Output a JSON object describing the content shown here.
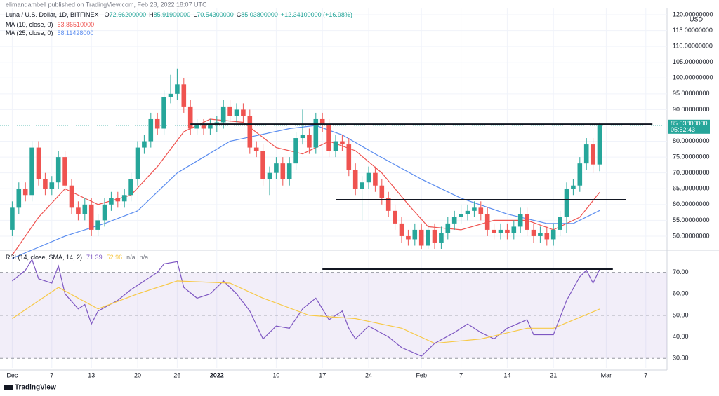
{
  "header": {
    "publisher": "elimandambell published on TradingView.com, Feb 28, 2022 18:07 UTC",
    "brand": "TradingView"
  },
  "chart_data": [
    {
      "type": "candlestick",
      "title": "Luna / U.S. Dollar, 1D, BITFINEX",
      "quote": [
        {
          "k": "O",
          "v": "72.66200000"
        },
        {
          "k": "H",
          "v": "85.91900000"
        },
        {
          "k": "L",
          "v": "70.54300000"
        },
        {
          "k": "C",
          "v": "85.03800000"
        }
      ],
      "change": "+12.34100000 (+16.98%)",
      "unit_label": "USD",
      "last_price_label": "85.03800000",
      "countdown": "05:52:43",
      "up_color": "#26a69a",
      "down_color": "#ef5350",
      "xlim": [
        "2021-11-30",
        "2022-03-10"
      ],
      "xticks": [
        {
          "value": "2021-12-01",
          "label": "Dec"
        },
        {
          "value": "2021-12-07",
          "label": "7"
        },
        {
          "value": "2021-12-13",
          "label": "13"
        },
        {
          "value": "2021-12-20",
          "label": "20"
        },
        {
          "value": "2021-12-26",
          "label": "26"
        },
        {
          "value": "2022-01-01",
          "label": "2022"
        },
        {
          "value": "2022-01-10",
          "label": "10"
        },
        {
          "value": "2022-01-17",
          "label": "17"
        },
        {
          "value": "2022-01-24",
          "label": "24"
        },
        {
          "value": "2022-02-01",
          "label": "Feb"
        },
        {
          "value": "2022-02-07",
          "label": "7"
        },
        {
          "value": "2022-02-14",
          "label": "14"
        },
        {
          "value": "2022-02-21",
          "label": "21"
        },
        {
          "value": "2022-03-01",
          "label": "Mar"
        },
        {
          "value": "2022-03-07",
          "label": "7"
        }
      ],
      "ylim": [
        46,
        122
      ],
      "yticks": [
        {
          "value": 50,
          "label": "50.00000000"
        },
        {
          "value": 55,
          "label": "55.00000000"
        },
        {
          "value": 60,
          "label": "60.00000000"
        },
        {
          "value": 65,
          "label": "65.00000000"
        },
        {
          "value": 70,
          "label": "70.00000000"
        },
        {
          "value": 75,
          "label": "75.00000000"
        },
        {
          "value": 80,
          "label": "80.00000000"
        },
        {
          "value": 90,
          "label": "90.00000000"
        },
        {
          "value": 95,
          "label": "95.00000000"
        },
        {
          "value": 100,
          "label": "100.00000000"
        },
        {
          "value": 105,
          "label": "105.00000000"
        },
        {
          "value": 110,
          "label": "110.00000000"
        },
        {
          "value": 115,
          "label": "115.00000000"
        },
        {
          "value": 120,
          "label": "120.00000000"
        }
      ],
      "grid": true,
      "x": [
        "2021-12-01",
        "2021-12-02",
        "2021-12-03",
        "2021-12-04",
        "2021-12-05",
        "2021-12-06",
        "2021-12-07",
        "2021-12-08",
        "2021-12-09",
        "2021-12-10",
        "2021-12-11",
        "2021-12-12",
        "2021-12-13",
        "2021-12-14",
        "2021-12-15",
        "2021-12-16",
        "2021-12-17",
        "2021-12-18",
        "2021-12-19",
        "2021-12-20",
        "2021-12-21",
        "2021-12-22",
        "2021-12-23",
        "2021-12-24",
        "2021-12-25",
        "2021-12-26",
        "2021-12-27",
        "2021-12-28",
        "2021-12-29",
        "2021-12-30",
        "2021-12-31",
        "2022-01-01",
        "2022-01-02",
        "2022-01-03",
        "2022-01-04",
        "2022-01-05",
        "2022-01-06",
        "2022-01-07",
        "2022-01-08",
        "2022-01-09",
        "2022-01-10",
        "2022-01-11",
        "2022-01-12",
        "2022-01-13",
        "2022-01-14",
        "2022-01-15",
        "2022-01-16",
        "2022-01-17",
        "2022-01-18",
        "2022-01-19",
        "2022-01-20",
        "2022-01-21",
        "2022-01-22",
        "2022-01-23",
        "2022-01-24",
        "2022-01-25",
        "2022-01-26",
        "2022-01-27",
        "2022-01-28",
        "2022-01-29",
        "2022-01-30",
        "2022-01-31",
        "2022-02-01",
        "2022-02-02",
        "2022-02-03",
        "2022-02-04",
        "2022-02-05",
        "2022-02-06",
        "2022-02-07",
        "2022-02-08",
        "2022-02-09",
        "2022-02-10",
        "2022-02-11",
        "2022-02-12",
        "2022-02-13",
        "2022-02-14",
        "2022-02-15",
        "2022-02-16",
        "2022-02-17",
        "2022-02-18",
        "2022-02-19",
        "2022-02-20",
        "2022-02-21",
        "2022-02-22",
        "2022-02-23",
        "2022-02-24",
        "2022-02-25",
        "2022-02-26",
        "2022-02-27",
        "2022-02-28"
      ],
      "open": [
        52,
        59,
        65,
        63,
        78,
        68,
        65,
        67,
        75,
        66,
        59,
        57,
        60,
        52,
        55,
        60,
        62,
        61,
        63,
        68,
        78,
        80,
        87,
        84,
        94,
        95,
        98,
        91,
        84,
        85,
        84,
        85,
        86,
        91,
        88,
        90,
        88,
        78,
        77,
        68,
        70,
        73,
        68,
        73,
        81,
        82,
        78,
        87,
        85,
        77,
        80,
        79,
        71,
        65,
        67,
        70,
        66,
        62,
        58,
        54,
        50,
        49,
        52,
        47,
        52,
        48,
        51,
        54,
        56,
        57,
        58,
        59,
        57,
        52,
        51,
        52,
        51,
        53,
        57,
        52,
        50,
        51,
        49,
        52,
        56,
        65,
        66,
        73,
        79,
        72.662
      ],
      "high": [
        61,
        67,
        67,
        80,
        80,
        70,
        69,
        77,
        77,
        68,
        61,
        62,
        62,
        57,
        62,
        64,
        64,
        65,
        70,
        80,
        82,
        89,
        89,
        96,
        101,
        103,
        100,
        93,
        87,
        87,
        87,
        88,
        93,
        93,
        92,
        92,
        90,
        80,
        79,
        72,
        75,
        75,
        75,
        83,
        90,
        84,
        89,
        89,
        87,
        82,
        82,
        81,
        73,
        69,
        72,
        72,
        68,
        64,
        60,
        56,
        52,
        54,
        54,
        54,
        54,
        53,
        56,
        58,
        60,
        60,
        61,
        61,
        59,
        54,
        54,
        54,
        55,
        59,
        59,
        54,
        53,
        53,
        54,
        58,
        67,
        68,
        75,
        81,
        81,
        85.919
      ],
      "low": [
        50,
        57,
        61,
        61,
        66,
        63,
        63,
        65,
        64,
        57,
        55,
        55,
        50,
        50,
        53,
        58,
        59,
        59,
        61,
        66,
        76,
        78,
        82,
        82,
        92,
        93,
        89,
        82,
        82,
        82,
        82,
        83,
        84,
        86,
        86,
        86,
        76,
        75,
        66,
        63,
        68,
        66,
        66,
        71,
        79,
        76,
        76,
        83,
        75,
        75,
        77,
        69,
        63,
        55,
        65,
        64,
        60,
        56,
        52,
        48,
        47,
        47,
        46,
        46,
        46,
        46,
        49,
        52,
        54,
        55,
        56,
        55,
        50,
        49,
        49,
        49,
        49,
        51,
        50,
        48,
        48,
        47,
        47,
        50,
        51,
        63,
        64,
        71,
        70,
        70.543
      ],
      "close": [
        59,
        65,
        63,
        78,
        68,
        65,
        67,
        75,
        66,
        59,
        57,
        60,
        52,
        55,
        60,
        62,
        61,
        63,
        68,
        78,
        80,
        87,
        84,
        94,
        95,
        98,
        91,
        84,
        85,
        84,
        85,
        86,
        91,
        88,
        90,
        88,
        78,
        77,
        68,
        70,
        73,
        68,
        73,
        81,
        82,
        78,
        87,
        85,
        77,
        80,
        79,
        71,
        65,
        67,
        70,
        66,
        62,
        58,
        54,
        50,
        49,
        52,
        47,
        52,
        48,
        51,
        54,
        56,
        57,
        58,
        59,
        57,
        52,
        51,
        52,
        51,
        53,
        57,
        52,
        50,
        51,
        49,
        52,
        56,
        65,
        66,
        73,
        79,
        72.662,
        85.038
      ],
      "series": [
        {
          "name": "MA (10, close, 0)",
          "value_label": "63.86510000",
          "color": "#ef5350",
          "x": [
            "2021-12-01",
            "2021-12-05",
            "2021-12-09",
            "2021-12-14",
            "2021-12-19",
            "2021-12-23",
            "2021-12-27",
            "2021-12-31",
            "2022-01-05",
            "2022-01-10",
            "2022-01-14",
            "2022-01-18",
            "2022-01-22",
            "2022-01-26",
            "2022-01-30",
            "2022-02-02",
            "2022-02-07",
            "2022-02-12",
            "2022-02-17",
            "2022-02-21",
            "2022-02-25",
            "2022-02-28"
          ],
          "values": [
            44,
            56,
            65,
            60,
            63,
            72,
            83,
            87,
            86,
            78,
            76,
            80,
            77,
            70,
            60,
            53,
            52,
            55,
            55,
            52,
            56,
            63.8651
          ]
        },
        {
          "name": "MA (25, close, 0)",
          "value_label": "58.11428000",
          "color": "#5b8def",
          "x": [
            "2021-12-01",
            "2021-12-09",
            "2021-12-15",
            "2021-12-20",
            "2021-12-26",
            "2022-01-03",
            "2022-01-12",
            "2022-01-16",
            "2022-01-20",
            "2022-01-25",
            "2022-02-01",
            "2022-02-07",
            "2022-02-14",
            "2022-02-20",
            "2022-02-24",
            "2022-02-28"
          ],
          "values": [
            43,
            50,
            54,
            58,
            70,
            80,
            84,
            85,
            82,
            76,
            68,
            62,
            57,
            54,
            54,
            58.11428
          ]
        }
      ],
      "trendlines": [
        {
          "x": [
            "2021-12-28",
            "2022-03-08"
          ],
          "y": 85.4
        },
        {
          "x": [
            "2022-01-19",
            "2022-03-04"
          ],
          "y": 61.5
        }
      ]
    },
    {
      "type": "line",
      "title": "RSI (14, close, SMA, 14, 2)",
      "extra_labels": [
        "n/a",
        "n/a"
      ],
      "xlim": [
        "2021-11-30",
        "2022-03-10"
      ],
      "ylim": [
        25.5,
        80
      ],
      "yticks": [
        {
          "value": 30,
          "label": "30.00"
        },
        {
          "value": 40,
          "label": "40.00"
        },
        {
          "value": 50,
          "label": "50.00"
        },
        {
          "value": 60,
          "label": "60.00"
        },
        {
          "value": 70,
          "label": "70.00"
        }
      ],
      "levels": [
        30,
        50,
        70
      ],
      "band_color": "#7e57c2",
      "series": [
        {
          "name": "RSI",
          "value_label": "71.39",
          "color": "#7e57c2",
          "x": [
            "2021-12-01",
            "2021-12-03",
            "2021-12-04",
            "2021-12-05",
            "2021-12-07",
            "2021-12-08",
            "2021-12-09",
            "2021-12-11",
            "2021-12-12",
            "2021-12-13",
            "2021-12-14",
            "2021-12-17",
            "2021-12-19",
            "2021-12-21",
            "2021-12-23",
            "2021-12-24",
            "2021-12-26",
            "2021-12-27",
            "2021-12-29",
            "2021-12-31",
            "2022-01-02",
            "2022-01-04",
            "2022-01-06",
            "2022-01-08",
            "2022-01-10",
            "2022-01-12",
            "2022-01-14",
            "2022-01-16",
            "2022-01-18",
            "2022-01-20",
            "2022-01-21",
            "2022-01-22",
            "2022-01-24",
            "2022-01-27",
            "2022-01-29",
            "2022-02-01",
            "2022-02-03",
            "2022-02-06",
            "2022-02-08",
            "2022-02-10",
            "2022-02-12",
            "2022-02-14",
            "2022-02-17",
            "2022-02-18",
            "2022-02-21",
            "2022-02-23",
            "2022-02-25",
            "2022-02-26",
            "2022-02-27",
            "2022-02-28"
          ],
          "values": [
            66,
            71,
            76,
            67,
            65,
            73,
            60,
            53,
            55,
            46,
            52,
            57,
            62,
            66,
            70,
            74,
            75,
            63,
            58,
            60,
            66,
            60,
            52,
            39,
            45,
            44,
            53,
            58,
            48,
            52,
            44,
            39,
            45,
            40,
            35,
            31,
            37,
            42,
            46,
            42,
            39,
            44,
            48,
            41,
            41,
            57,
            68,
            71,
            65,
            71.39
          ]
        },
        {
          "name": "SMA",
          "value_label": "52.96",
          "color": "#f7c948",
          "x": [
            "2021-12-01",
            "2021-12-08",
            "2021-12-14",
            "2021-12-20",
            "2021-12-26",
            "2022-01-03",
            "2022-01-08",
            "2022-01-15",
            "2022-01-22",
            "2022-01-29",
            "2022-02-03",
            "2022-02-10",
            "2022-02-17",
            "2022-02-21",
            "2022-02-28"
          ],
          "values": [
            48.5,
            63,
            53,
            60,
            66,
            65,
            58,
            50,
            48.5,
            44,
            37,
            39,
            44,
            44,
            52.96
          ]
        }
      ],
      "trendlines": [
        {
          "x": [
            "2022-01-17",
            "2022-03-02"
          ],
          "y": 71.5
        }
      ]
    }
  ]
}
